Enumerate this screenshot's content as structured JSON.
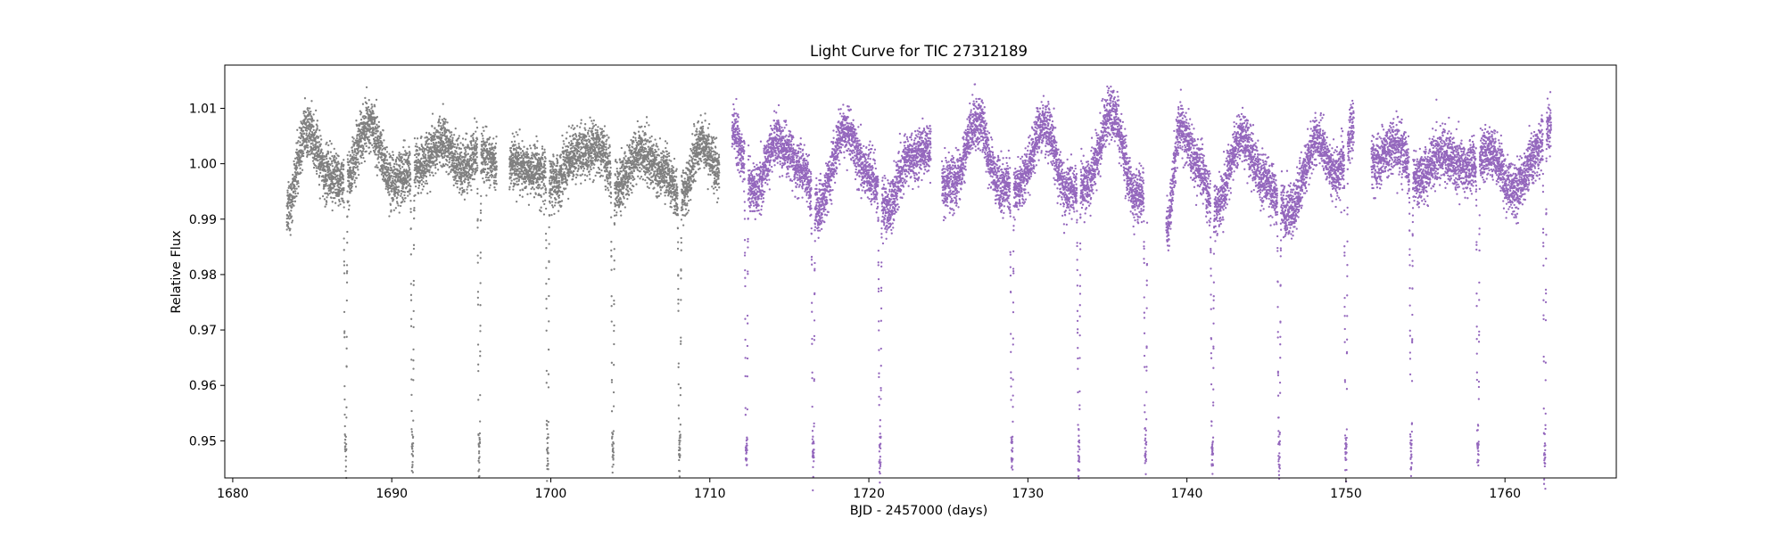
{
  "chart_data": {
    "type": "scatter",
    "title": "Light Curve for TIC 27312189",
    "xlabel": "BJD - 2457000 (days)",
    "ylabel": "Relative Flux",
    "xlim": [
      1679.5,
      1767.0
    ],
    "ylim": [
      0.9433,
      1.0178
    ],
    "xticks": [
      1680,
      1690,
      1700,
      1710,
      1720,
      1730,
      1740,
      1750,
      1760
    ],
    "yticks": [
      0.95,
      0.96,
      0.97,
      0.98,
      0.99,
      1.0,
      1.01
    ],
    "grid": false,
    "legend": "none",
    "eclipse_period": 4.18,
    "eclipse_depth_min": 0.948,
    "series": [
      {
        "color": "#808080",
        "segments": [
          [
            1683.4,
            1696.6
          ],
          [
            1697.4,
            1710.6
          ]
        ],
        "eclipse_times": [
          1687.1,
          1691.3,
          1695.5,
          1699.8,
          1703.9,
          1708.1
        ],
        "variability": [
          {
            "t": 1683.4,
            "f": 0.992
          },
          {
            "t": 1684.7,
            "f": 1.006
          },
          {
            "t": 1686.0,
            "f": 0.998
          },
          {
            "t": 1687.0,
            "f": 0.997
          },
          {
            "t": 1688.6,
            "f": 1.007
          },
          {
            "t": 1690.0,
            "f": 0.997
          },
          {
            "t": 1691.5,
            "f": 0.999
          },
          {
            "t": 1693.2,
            "f": 1.004
          },
          {
            "t": 1694.5,
            "f": 0.999
          },
          {
            "t": 1695.5,
            "f": 1.002
          },
          {
            "t": 1696.6,
            "f": 1.0
          },
          {
            "t": 1697.4,
            "f": 1.0
          },
          {
            "t": 1698.8,
            "f": 0.999
          },
          {
            "t": 1700.2,
            "f": 0.997
          },
          {
            "t": 1701.8,
            "f": 1.002
          },
          {
            "t": 1703.0,
            "f": 1.003
          },
          {
            "t": 1704.2,
            "f": 0.996
          },
          {
            "t": 1705.6,
            "f": 1.002
          },
          {
            "t": 1707.0,
            "f": 0.999
          },
          {
            "t": 1708.2,
            "f": 0.994
          },
          {
            "t": 1709.5,
            "f": 1.004
          },
          {
            "t": 1710.6,
            "f": 0.999
          }
        ]
      },
      {
        "color": "#9467bd",
        "segments": [
          [
            1711.4,
            1723.9
          ],
          [
            1724.6,
            1737.5
          ],
          [
            1738.7,
            1750.5
          ],
          [
            1751.6,
            1762.9
          ]
        ],
        "eclipse_times": [
          1712.3,
          1716.5,
          1720.7,
          1729.0,
          1733.2,
          1737.4,
          1741.6,
          1745.8,
          1750.0,
          1754.1,
          1758.3,
          1762.5
        ],
        "variability": [
          {
            "t": 1711.4,
            "f": 1.006
          },
          {
            "t": 1712.8,
            "f": 0.995
          },
          {
            "t": 1714.2,
            "f": 1.004
          },
          {
            "t": 1715.8,
            "f": 0.999
          },
          {
            "t": 1716.8,
            "f": 0.992
          },
          {
            "t": 1718.5,
            "f": 1.006
          },
          {
            "t": 1720.0,
            "f": 0.998
          },
          {
            "t": 1721.2,
            "f": 0.992
          },
          {
            "t": 1722.5,
            "f": 1.001
          },
          {
            "t": 1723.9,
            "f": 1.003
          },
          {
            "t": 1724.6,
            "f": 0.996
          },
          {
            "t": 1725.4,
            "f": 0.997
          },
          {
            "t": 1726.8,
            "f": 1.008
          },
          {
            "t": 1728.3,
            "f": 0.996
          },
          {
            "t": 1729.4,
            "f": 0.996
          },
          {
            "t": 1731.0,
            "f": 1.007
          },
          {
            "t": 1732.5,
            "f": 0.995
          },
          {
            "t": 1733.6,
            "f": 0.996
          },
          {
            "t": 1735.3,
            "f": 1.009
          },
          {
            "t": 1736.8,
            "f": 0.994
          },
          {
            "t": 1737.5,
            "f": 0.995
          },
          {
            "t": 1738.7,
            "f": 0.988
          },
          {
            "t": 1739.6,
            "f": 1.007
          },
          {
            "t": 1740.6,
            "f": 1.0
          },
          {
            "t": 1741.8,
            "f": 0.992
          },
          {
            "t": 1743.5,
            "f": 1.005
          },
          {
            "t": 1744.8,
            "f": 0.997
          },
          {
            "t": 1746.4,
            "f": 0.991
          },
          {
            "t": 1748.2,
            "f": 1.004
          },
          {
            "t": 1749.4,
            "f": 0.998
          },
          {
            "t": 1750.5,
            "f": 1.006
          },
          {
            "t": 1751.6,
            "f": 1.0
          },
          {
            "t": 1753.2,
            "f": 1.003
          },
          {
            "t": 1754.5,
            "f": 0.997
          },
          {
            "t": 1756.0,
            "f": 1.002
          },
          {
            "t": 1757.5,
            "f": 0.999
          },
          {
            "t": 1759.0,
            "f": 1.002
          },
          {
            "t": 1760.6,
            "f": 0.995
          },
          {
            "t": 1762.0,
            "f": 1.002
          },
          {
            "t": 1762.9,
            "f": 1.007
          }
        ]
      }
    ]
  }
}
